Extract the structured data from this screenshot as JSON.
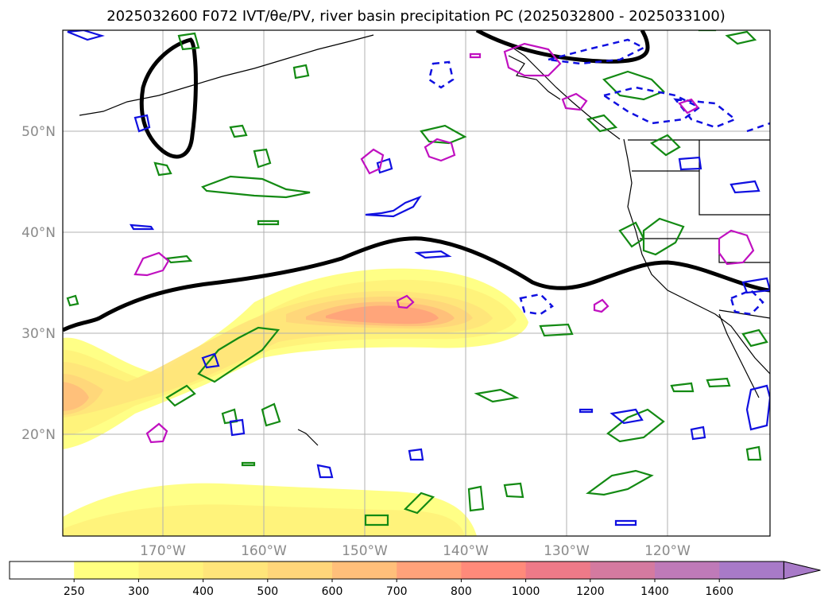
{
  "title": "2025032600 F072 IVT/θe/PV, river basin precipitation PC (2025032800 - 2025033100)",
  "map": {
    "lat_labels": [
      "50°N",
      "40°N",
      "30°N",
      "20°N"
    ],
    "lon_labels": [
      "170°W",
      "160°W",
      "150°W",
      "140°W",
      "130°W",
      "120°W"
    ]
  },
  "colorbar": {
    "labels": [
      "250",
      "300",
      "400",
      "500",
      "600",
      "700",
      "800",
      "1000",
      "1200",
      "1400",
      "1600"
    ],
    "colors": [
      "#ffffff",
      "#ffff80",
      "#fff27a",
      "#ffe57a",
      "#ffd67a",
      "#ffbf7a",
      "#ffa27a",
      "#ff8a7a",
      "#ee7a88",
      "#d47aa0",
      "#bf7ab8",
      "#a87ac8"
    ]
  }
}
